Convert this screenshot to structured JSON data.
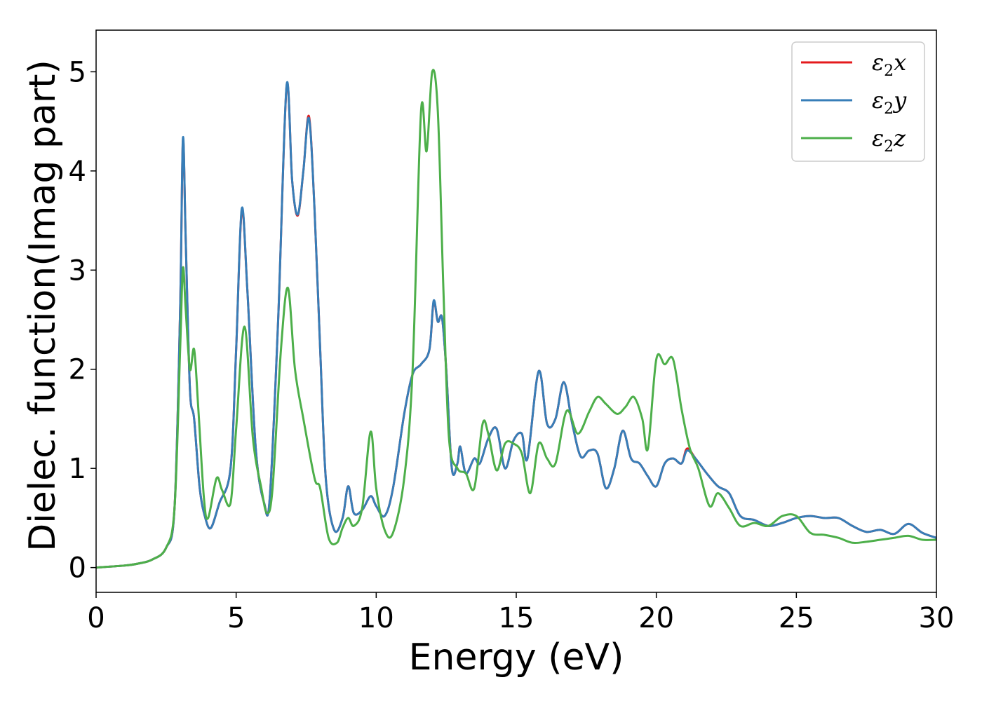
{
  "chart_data": {
    "type": "line",
    "title": "",
    "xlabel": "Energy (eV)",
    "ylabel": "Dielec. function(Imag part)",
    "xlim": [
      0,
      30
    ],
    "ylim": [
      -0.25,
      5.42
    ],
    "xticks": [
      0,
      5,
      10,
      15,
      20,
      25,
      30
    ],
    "yticks": [
      0,
      1,
      2,
      3,
      4,
      5
    ],
    "grid": false,
    "legend_position": "top-right",
    "series": [
      {
        "name": "ε2x",
        "legend": {
          "base": "ε",
          "sub": "2",
          "axis": "x"
        },
        "color": "#e41a1c",
        "points": [
          [
            0,
            0
          ],
          [
            1,
            0.02
          ],
          [
            1.5,
            0.04
          ],
          [
            2,
            0.08
          ],
          [
            2.5,
            0.2
          ],
          [
            2.8,
            0.6
          ],
          [
            3.0,
            2.6
          ],
          [
            3.1,
            4.3
          ],
          [
            3.2,
            3.3
          ],
          [
            3.35,
            1.8
          ],
          [
            3.5,
            1.5
          ],
          [
            3.7,
            0.8
          ],
          [
            3.9,
            0.5
          ],
          [
            4.1,
            0.4
          ],
          [
            4.4,
            0.65
          ],
          [
            4.8,
            1.0
          ],
          [
            5.0,
            2.2
          ],
          [
            5.2,
            3.6
          ],
          [
            5.4,
            2.8
          ],
          [
            5.7,
            1.2
          ],
          [
            6.0,
            0.65
          ],
          [
            6.2,
            0.7
          ],
          [
            6.5,
            2.5
          ],
          [
            6.8,
            4.85
          ],
          [
            7.0,
            3.9
          ],
          [
            7.2,
            3.55
          ],
          [
            7.4,
            4.0
          ],
          [
            7.6,
            4.55
          ],
          [
            7.8,
            3.6
          ],
          [
            8.0,
            2.2
          ],
          [
            8.2,
            0.9
          ],
          [
            8.5,
            0.38
          ],
          [
            8.8,
            0.5
          ],
          [
            9.0,
            0.82
          ],
          [
            9.2,
            0.55
          ],
          [
            9.5,
            0.58
          ],
          [
            9.8,
            0.72
          ],
          [
            10.0,
            0.62
          ],
          [
            10.3,
            0.52
          ],
          [
            10.6,
            0.8
          ],
          [
            11.0,
            1.55
          ],
          [
            11.3,
            1.95
          ],
          [
            11.6,
            2.05
          ],
          [
            11.9,
            2.2
          ],
          [
            12.05,
            2.68
          ],
          [
            12.2,
            2.48
          ],
          [
            12.35,
            2.52
          ],
          [
            12.5,
            2.0
          ],
          [
            12.7,
            1.0
          ],
          [
            12.9,
            1.05
          ],
          [
            13.0,
            1.22
          ],
          [
            13.2,
            0.95
          ],
          [
            13.5,
            1.1
          ],
          [
            13.7,
            1.05
          ],
          [
            14.0,
            1.3
          ],
          [
            14.3,
            1.4
          ],
          [
            14.6,
            1.0
          ],
          [
            14.9,
            1.28
          ],
          [
            15.2,
            1.35
          ],
          [
            15.4,
            1.1
          ],
          [
            15.8,
            1.98
          ],
          [
            16.1,
            1.45
          ],
          [
            16.4,
            1.5
          ],
          [
            16.7,
            1.87
          ],
          [
            17.0,
            1.45
          ],
          [
            17.3,
            1.12
          ],
          [
            17.6,
            1.18
          ],
          [
            17.9,
            1.15
          ],
          [
            18.2,
            0.8
          ],
          [
            18.5,
            1.0
          ],
          [
            18.8,
            1.38
          ],
          [
            19.1,
            1.1
          ],
          [
            19.4,
            1.05
          ],
          [
            19.7,
            0.92
          ],
          [
            20.0,
            0.82
          ],
          [
            20.3,
            1.05
          ],
          [
            20.6,
            1.1
          ],
          [
            20.9,
            1.05
          ],
          [
            21.1,
            1.2
          ],
          [
            21.4,
            1.1
          ],
          [
            21.8,
            0.95
          ],
          [
            22.2,
            0.82
          ],
          [
            22.6,
            0.75
          ],
          [
            23.0,
            0.52
          ],
          [
            23.5,
            0.48
          ],
          [
            24.0,
            0.42
          ],
          [
            24.5,
            0.45
          ],
          [
            25.0,
            0.5
          ],
          [
            25.5,
            0.52
          ],
          [
            26.0,
            0.5
          ],
          [
            26.5,
            0.5
          ],
          [
            27.0,
            0.42
          ],
          [
            27.5,
            0.36
          ],
          [
            28.0,
            0.38
          ],
          [
            28.5,
            0.34
          ],
          [
            29.0,
            0.44
          ],
          [
            29.5,
            0.35
          ],
          [
            30.0,
            0.3
          ]
        ]
      },
      {
        "name": "ε2y",
        "legend": {
          "base": "ε",
          "sub": "2",
          "axis": "y"
        },
        "color": "#377eb8",
        "points": [
          [
            0,
            0
          ],
          [
            1,
            0.02
          ],
          [
            1.5,
            0.04
          ],
          [
            2,
            0.08
          ],
          [
            2.5,
            0.2
          ],
          [
            2.8,
            0.6
          ],
          [
            3.0,
            2.6
          ],
          [
            3.1,
            4.33
          ],
          [
            3.2,
            3.3
          ],
          [
            3.35,
            1.8
          ],
          [
            3.5,
            1.5
          ],
          [
            3.7,
            0.8
          ],
          [
            3.9,
            0.5
          ],
          [
            4.1,
            0.4
          ],
          [
            4.4,
            0.65
          ],
          [
            4.8,
            1.0
          ],
          [
            5.0,
            2.2
          ],
          [
            5.2,
            3.62
          ],
          [
            5.4,
            2.8
          ],
          [
            5.7,
            1.2
          ],
          [
            6.0,
            0.65
          ],
          [
            6.2,
            0.7
          ],
          [
            6.5,
            2.5
          ],
          [
            6.8,
            4.86
          ],
          [
            7.0,
            3.9
          ],
          [
            7.2,
            3.56
          ],
          [
            7.4,
            4.0
          ],
          [
            7.6,
            4.53
          ],
          [
            7.8,
            3.6
          ],
          [
            8.0,
            2.2
          ],
          [
            8.2,
            0.9
          ],
          [
            8.5,
            0.38
          ],
          [
            8.8,
            0.5
          ],
          [
            9.0,
            0.82
          ],
          [
            9.2,
            0.55
          ],
          [
            9.5,
            0.58
          ],
          [
            9.8,
            0.72
          ],
          [
            10.0,
            0.62
          ],
          [
            10.3,
            0.52
          ],
          [
            10.6,
            0.8
          ],
          [
            11.0,
            1.55
          ],
          [
            11.3,
            1.95
          ],
          [
            11.6,
            2.05
          ],
          [
            11.9,
            2.2
          ],
          [
            12.05,
            2.69
          ],
          [
            12.2,
            2.48
          ],
          [
            12.35,
            2.52
          ],
          [
            12.5,
            2.0
          ],
          [
            12.7,
            1.0
          ],
          [
            12.9,
            1.05
          ],
          [
            13.0,
            1.22
          ],
          [
            13.2,
            0.95
          ],
          [
            13.5,
            1.1
          ],
          [
            13.7,
            1.05
          ],
          [
            14.0,
            1.3
          ],
          [
            14.3,
            1.4
          ],
          [
            14.6,
            1.0
          ],
          [
            14.9,
            1.28
          ],
          [
            15.2,
            1.35
          ],
          [
            15.4,
            1.1
          ],
          [
            15.8,
            1.98
          ],
          [
            16.1,
            1.45
          ],
          [
            16.4,
            1.5
          ],
          [
            16.7,
            1.87
          ],
          [
            17.0,
            1.45
          ],
          [
            17.3,
            1.12
          ],
          [
            17.6,
            1.18
          ],
          [
            17.9,
            1.15
          ],
          [
            18.2,
            0.8
          ],
          [
            18.5,
            1.0
          ],
          [
            18.8,
            1.38
          ],
          [
            19.1,
            1.1
          ],
          [
            19.4,
            1.05
          ],
          [
            19.7,
            0.92
          ],
          [
            20.0,
            0.82
          ],
          [
            20.3,
            1.05
          ],
          [
            20.6,
            1.1
          ],
          [
            20.9,
            1.05
          ],
          [
            21.1,
            1.18
          ],
          [
            21.4,
            1.1
          ],
          [
            21.8,
            0.95
          ],
          [
            22.2,
            0.82
          ],
          [
            22.6,
            0.75
          ],
          [
            23.0,
            0.52
          ],
          [
            23.5,
            0.48
          ],
          [
            24.0,
            0.42
          ],
          [
            24.5,
            0.45
          ],
          [
            25.0,
            0.5
          ],
          [
            25.5,
            0.52
          ],
          [
            26.0,
            0.5
          ],
          [
            26.5,
            0.5
          ],
          [
            27.0,
            0.42
          ],
          [
            27.5,
            0.36
          ],
          [
            28.0,
            0.38
          ],
          [
            28.5,
            0.34
          ],
          [
            29.0,
            0.44
          ],
          [
            29.5,
            0.35
          ],
          [
            30.0,
            0.3
          ]
        ]
      },
      {
        "name": "ε2z",
        "legend": {
          "base": "ε",
          "sub": "2",
          "axis": "z"
        },
        "color": "#4daf4a",
        "points": [
          [
            0,
            0
          ],
          [
            1,
            0.02
          ],
          [
            1.5,
            0.04
          ],
          [
            2,
            0.08
          ],
          [
            2.5,
            0.2
          ],
          [
            2.8,
            0.6
          ],
          [
            3.0,
            2.2
          ],
          [
            3.1,
            3.02
          ],
          [
            3.2,
            2.6
          ],
          [
            3.35,
            2.0
          ],
          [
            3.5,
            2.2
          ],
          [
            3.65,
            1.6
          ],
          [
            3.85,
            0.7
          ],
          [
            4.0,
            0.5
          ],
          [
            4.3,
            0.9
          ],
          [
            4.5,
            0.78
          ],
          [
            4.8,
            0.65
          ],
          [
            5.0,
            1.4
          ],
          [
            5.3,
            2.43
          ],
          [
            5.6,
            1.3
          ],
          [
            5.9,
            0.8
          ],
          [
            6.1,
            0.55
          ],
          [
            6.3,
            0.8
          ],
          [
            6.6,
            2.2
          ],
          [
            6.85,
            2.82
          ],
          [
            7.1,
            2.0
          ],
          [
            7.4,
            1.5
          ],
          [
            7.8,
            0.9
          ],
          [
            8.0,
            0.8
          ],
          [
            8.3,
            0.3
          ],
          [
            8.6,
            0.25
          ],
          [
            8.8,
            0.4
          ],
          [
            9.0,
            0.5
          ],
          [
            9.2,
            0.42
          ],
          [
            9.5,
            0.6
          ],
          [
            9.8,
            1.37
          ],
          [
            10.0,
            0.8
          ],
          [
            10.3,
            0.38
          ],
          [
            10.6,
            0.35
          ],
          [
            11.0,
            0.9
          ],
          [
            11.3,
            2.0
          ],
          [
            11.6,
            4.6
          ],
          [
            11.8,
            4.2
          ],
          [
            12.0,
            5.0
          ],
          [
            12.2,
            4.6
          ],
          [
            12.4,
            2.8
          ],
          [
            12.6,
            1.3
          ],
          [
            12.9,
            1.0
          ],
          [
            13.2,
            0.95
          ],
          [
            13.5,
            0.8
          ],
          [
            13.8,
            1.45
          ],
          [
            14.0,
            1.35
          ],
          [
            14.3,
            0.98
          ],
          [
            14.6,
            1.25
          ],
          [
            14.9,
            1.25
          ],
          [
            15.2,
            1.15
          ],
          [
            15.5,
            0.75
          ],
          [
            15.8,
            1.25
          ],
          [
            16.1,
            1.1
          ],
          [
            16.4,
            1.05
          ],
          [
            16.8,
            1.58
          ],
          [
            17.2,
            1.35
          ],
          [
            17.6,
            1.57
          ],
          [
            17.9,
            1.72
          ],
          [
            18.2,
            1.65
          ],
          [
            18.6,
            1.55
          ],
          [
            18.9,
            1.62
          ],
          [
            19.2,
            1.72
          ],
          [
            19.5,
            1.5
          ],
          [
            19.7,
            1.2
          ],
          [
            20.0,
            2.1
          ],
          [
            20.3,
            2.05
          ],
          [
            20.6,
            2.1
          ],
          [
            20.9,
            1.6
          ],
          [
            21.2,
            1.2
          ],
          [
            21.5,
            1.0
          ],
          [
            21.9,
            0.62
          ],
          [
            22.2,
            0.75
          ],
          [
            22.6,
            0.6
          ],
          [
            23.0,
            0.42
          ],
          [
            23.5,
            0.45
          ],
          [
            24.0,
            0.42
          ],
          [
            24.5,
            0.52
          ],
          [
            25.0,
            0.52
          ],
          [
            25.5,
            0.35
          ],
          [
            26.0,
            0.33
          ],
          [
            26.5,
            0.3
          ],
          [
            27.0,
            0.25
          ],
          [
            27.5,
            0.26
          ],
          [
            28.0,
            0.28
          ],
          [
            28.5,
            0.3
          ],
          [
            29.0,
            0.32
          ],
          [
            29.5,
            0.28
          ],
          [
            30.0,
            0.28
          ]
        ]
      }
    ]
  }
}
